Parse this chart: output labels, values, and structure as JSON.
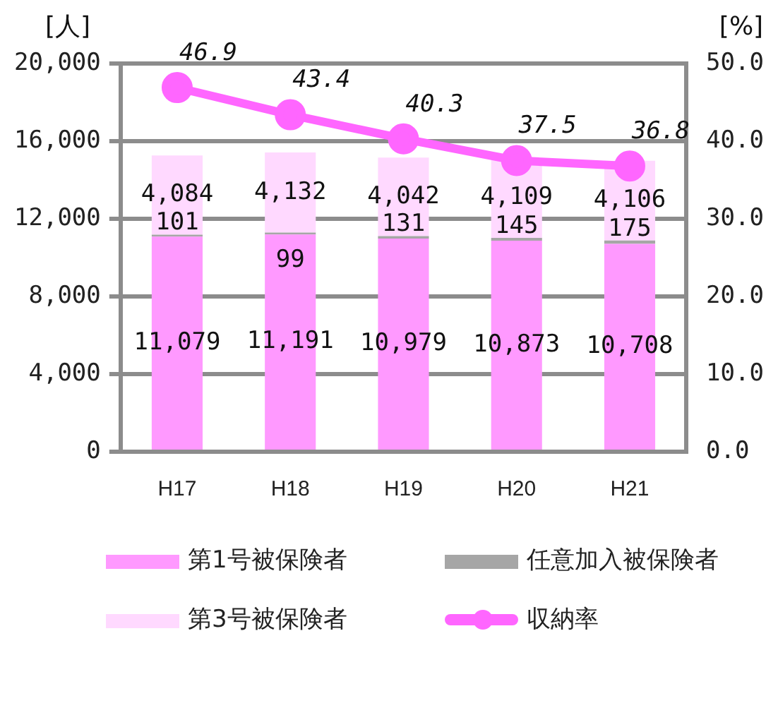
{
  "chart_data": {
    "type": "bar",
    "stacked": true,
    "ylabel": "[人]",
    "y2label": "[%]",
    "categories": [
      "H17",
      "H18",
      "H19",
      "H20",
      "H21"
    ],
    "series": [
      {
        "name": "第1号被保険者",
        "color": "#ff99ff",
        "values": [
          11079,
          11191,
          10979,
          10873,
          10708
        ],
        "value_labels": [
          "11,079",
          "11,191",
          "10,979",
          "10,873",
          "10,708"
        ]
      },
      {
        "name": "任意加入被保険者",
        "color": "#a6a6a6",
        "values": [
          101,
          99,
          131,
          145,
          175
        ],
        "value_labels": [
          "101",
          "99",
          "131",
          "145",
          "175"
        ]
      },
      {
        "name": "第3号被保険者",
        "color": "#ffd9ff",
        "values": [
          4084,
          4132,
          4042,
          4109,
          4106
        ],
        "value_labels": [
          "4,084",
          "4,132",
          "4,042",
          "4,109",
          "4,106"
        ]
      },
      {
        "name": "収納率",
        "type": "line",
        "axis": "y2",
        "color": "#ff66ff",
        "marker": "circle",
        "values": [
          46.9,
          43.4,
          40.3,
          37.5,
          36.8
        ],
        "value_labels": [
          "46.9",
          "43.4",
          "40.3",
          "37.5",
          "36.8"
        ]
      }
    ],
    "ylim": [
      0,
      20000
    ],
    "yticks": [
      {
        "value": 0,
        "label": "0"
      },
      {
        "value": 4000,
        "label": "4,000"
      },
      {
        "value": 8000,
        "label": "8,000"
      },
      {
        "value": 12000,
        "label": "12,000"
      },
      {
        "value": 16000,
        "label": "16,000"
      },
      {
        "value": 20000,
        "label": "20,000"
      }
    ],
    "y2lim": [
      0,
      50
    ],
    "y2ticks": [
      {
        "value": 0,
        "label": "0.0"
      },
      {
        "value": 10,
        "label": "10.0"
      },
      {
        "value": 20,
        "label": "20.0"
      },
      {
        "value": 30,
        "label": "30.0"
      },
      {
        "value": 40,
        "label": "40.0"
      },
      {
        "value": 50,
        "label": "50.0"
      }
    ],
    "grid": "y",
    "legend": "bottom"
  }
}
